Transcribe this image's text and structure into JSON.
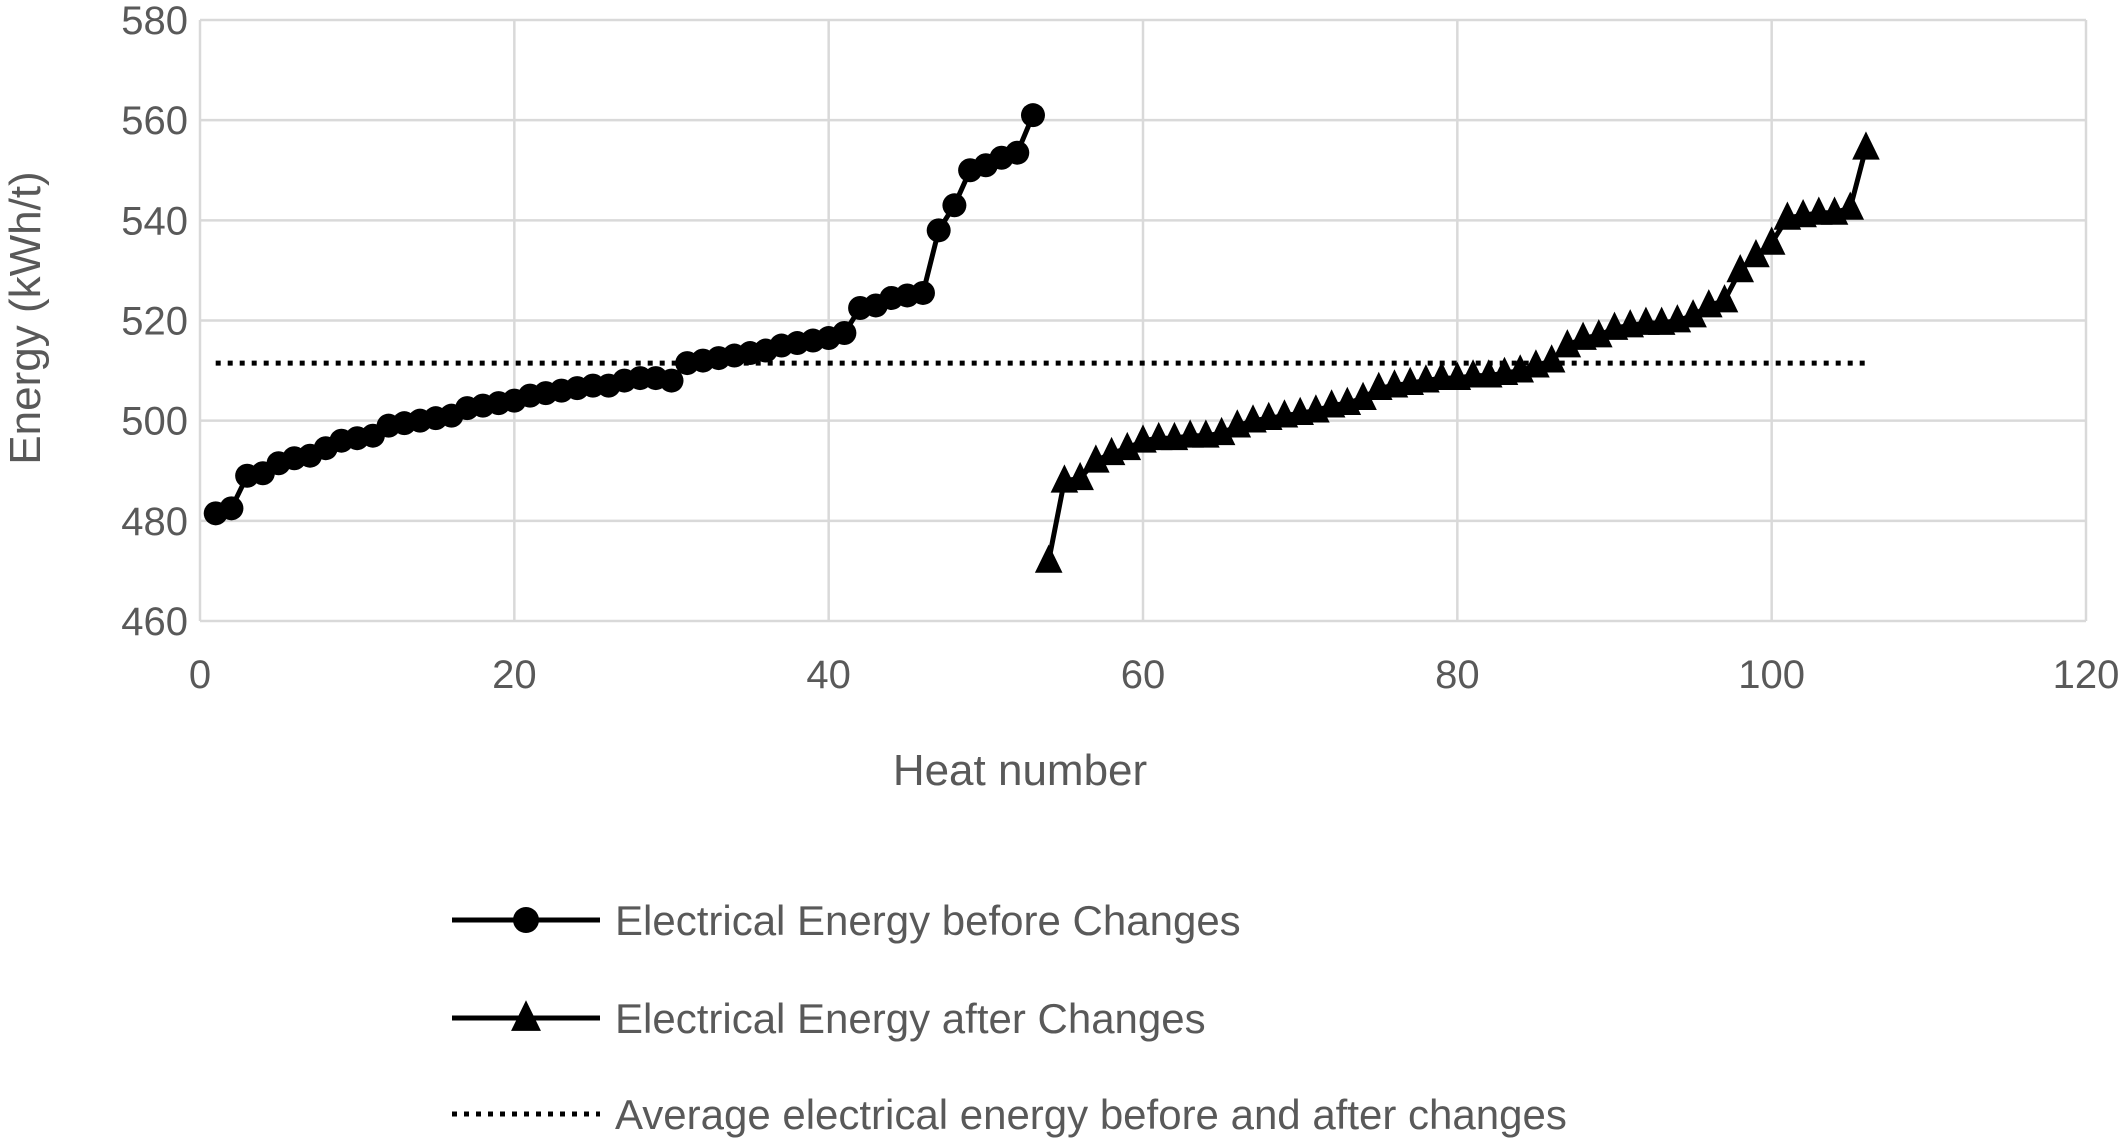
{
  "chart_data": {
    "type": "line",
    "title": "",
    "xlabel": "Heat number",
    "ylabel": "Energy (kWh/t)",
    "xlim": [
      0,
      120
    ],
    "ylim": [
      460,
      580
    ],
    "xticks": [
      "0",
      "20",
      "40",
      "60",
      "80",
      "100",
      "120"
    ],
    "yticks": [
      "460",
      "480",
      "500",
      "520",
      "540",
      "560",
      "580"
    ],
    "grid": true,
    "legend_position": "bottom",
    "colors": {
      "series": "#000000",
      "grid": "#d9d9d9",
      "text": "#595959"
    },
    "series": [
      {
        "name": "Electrical Energy before Changes",
        "marker": "circle",
        "line": "solid",
        "x": [
          1,
          2,
          3,
          4,
          5,
          6,
          7,
          8,
          9,
          10,
          11,
          12,
          13,
          14,
          15,
          16,
          17,
          18,
          19,
          20,
          21,
          22,
          23,
          24,
          25,
          26,
          27,
          28,
          29,
          30,
          31,
          32,
          33,
          34,
          35,
          36,
          37,
          38,
          39,
          40,
          41,
          42,
          43,
          44,
          45,
          46,
          47,
          48,
          49,
          50,
          51,
          52,
          53
        ],
        "y": [
          481.5,
          482.5,
          489,
          489.5,
          491.5,
          492.5,
          493,
          494.5,
          496,
          496.5,
          497,
          499,
          499.5,
          500,
          500.5,
          501,
          502.5,
          503,
          503.5,
          504,
          505,
          505.5,
          506,
          506.5,
          507,
          507,
          508,
          508.5,
          508.5,
          508,
          511.5,
          512,
          512.5,
          513,
          513.5,
          514,
          515,
          515.5,
          516,
          516.5,
          517.5,
          522.5,
          523,
          524.5,
          525,
          525.5,
          538,
          543,
          550,
          551,
          552.5,
          553.5,
          561
        ]
      },
      {
        "name": "Electrical Energy after Changes",
        "marker": "triangle",
        "line": "solid",
        "x": [
          54,
          55,
          56,
          57,
          58,
          59,
          60,
          61,
          62,
          63,
          64,
          65,
          66,
          67,
          68,
          69,
          70,
          71,
          72,
          73,
          74,
          75,
          76,
          77,
          78,
          79,
          80,
          81,
          82,
          83,
          84,
          85,
          86,
          87,
          88,
          89,
          90,
          91,
          92,
          93,
          94,
          95,
          96,
          97,
          98,
          99,
          100,
          101,
          102,
          103,
          104,
          105,
          106
        ],
        "y": [
          472,
          488,
          488.5,
          492,
          493.5,
          494.5,
          496,
          496.5,
          496.5,
          497,
          497,
          497.5,
          499,
          500,
          500.5,
          501,
          501.5,
          502,
          503,
          503.5,
          504.5,
          506.5,
          507,
          507.5,
          508,
          508.5,
          508.5,
          509,
          509,
          509.5,
          510,
          511,
          512,
          515,
          516.5,
          517,
          518.5,
          519,
          519.5,
          519.5,
          520,
          521,
          523,
          524,
          530,
          533,
          535.5,
          540.5,
          541,
          541.5,
          541.5,
          542.5,
          554.5
        ]
      },
      {
        "name": "Average electrical energy before and after changes",
        "marker": "none",
        "line": "dotted",
        "x": [
          1,
          106
        ],
        "y": [
          511.5,
          511.5
        ]
      }
    ]
  }
}
